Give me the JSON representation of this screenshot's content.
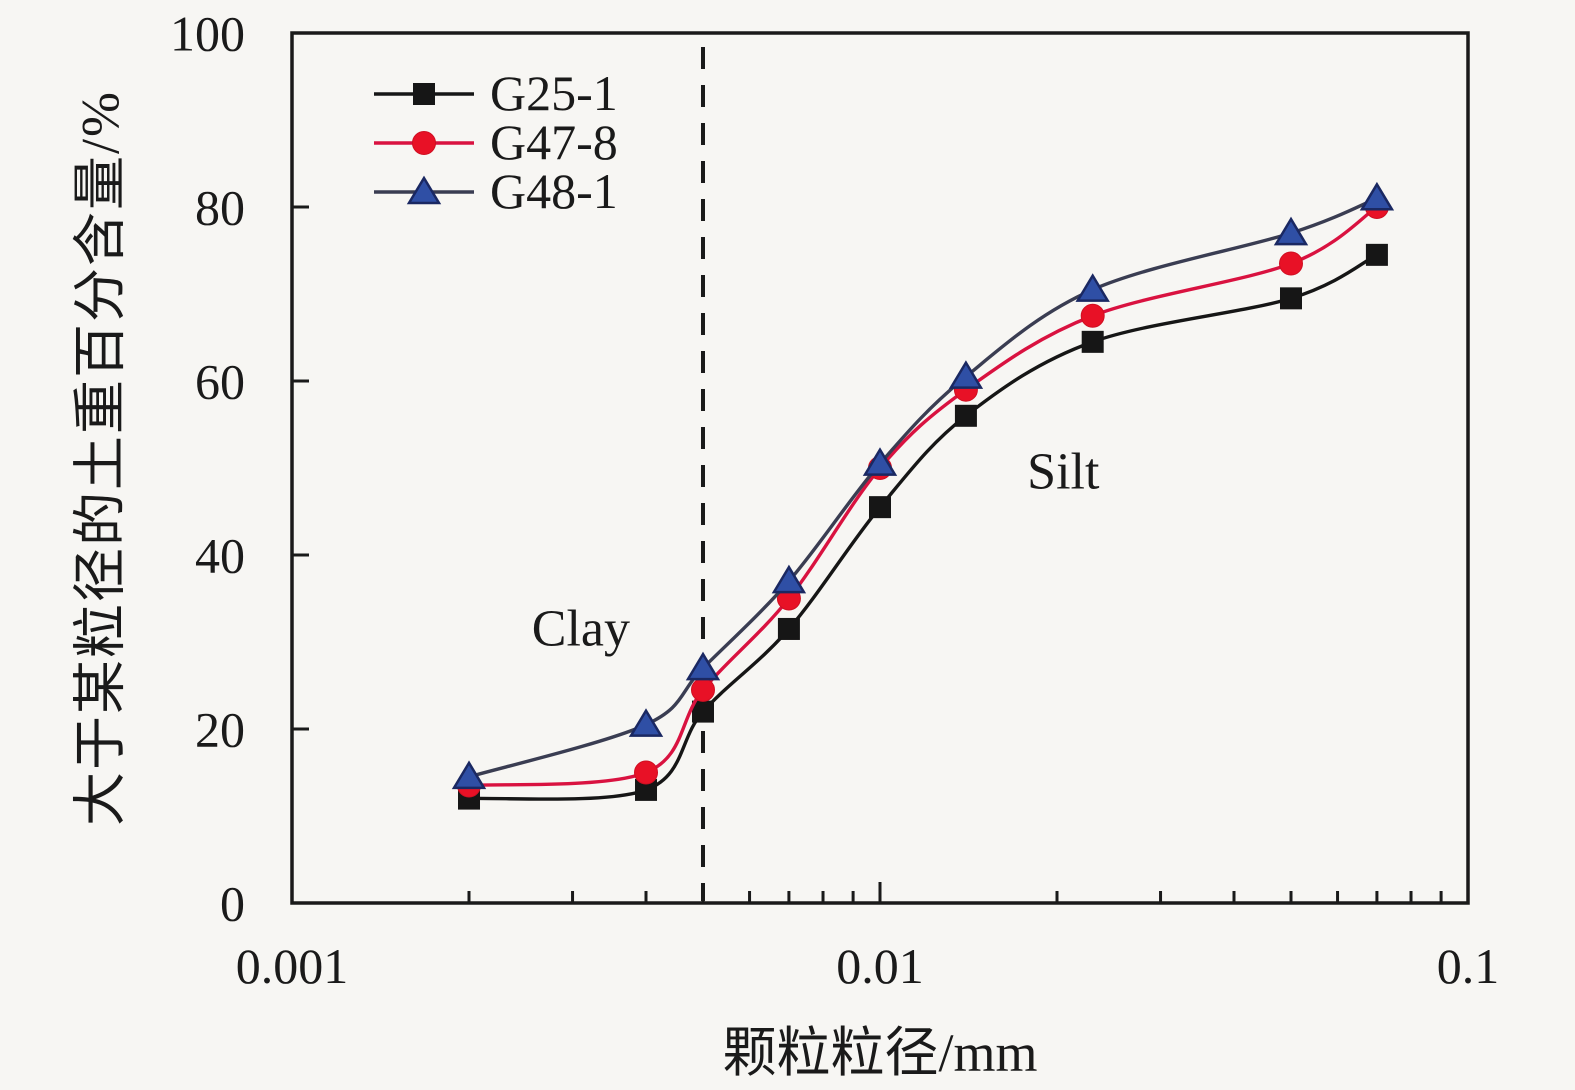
{
  "chart_data": {
    "type": "line",
    "title": "",
    "x_label": "颗粒粒径/mm",
    "y_label": "大于某粒径的土重百分含量/%",
    "x_scale": "log",
    "x_range": [
      0.001,
      0.1
    ],
    "y_range": [
      0,
      100
    ],
    "x_ticks": [
      {
        "value": 0.001,
        "label": "0.001"
      },
      {
        "value": 0.01,
        "label": "0.01"
      },
      {
        "value": 0.1,
        "label": "0.1"
      }
    ],
    "x_minor_ticks": [
      0.002,
      0.003,
      0.004,
      0.005,
      0.006,
      0.007,
      0.008,
      0.009,
      0.02,
      0.03,
      0.04,
      0.05,
      0.06,
      0.07,
      0.08,
      0.09
    ],
    "y_ticks": [
      {
        "value": 0,
        "label": "0"
      },
      {
        "value": 20,
        "label": "20"
      },
      {
        "value": 40,
        "label": "40"
      },
      {
        "value": 60,
        "label": "60"
      },
      {
        "value": 80,
        "label": "80"
      },
      {
        "value": 100,
        "label": "100"
      }
    ],
    "boundary_line": {
      "x": 0.005,
      "style": "dashed",
      "color": "#1a1a1a"
    },
    "region_labels": [
      {
        "text": "Clay",
        "x": 0.0031,
        "y": 31.5
      },
      {
        "text": "Silt",
        "x": 0.0205,
        "y": 49.5
      }
    ],
    "legend_position": "top-left",
    "series": [
      {
        "name": "G25-1",
        "marker": "square",
        "line_color": "#161616",
        "marker_color": "#161616",
        "marker_edge": "#161616",
        "points": [
          [
            0.002,
            12
          ],
          [
            0.004,
            13
          ],
          [
            0.005,
            22
          ],
          [
            0.007,
            31.5
          ],
          [
            0.01,
            45.5
          ],
          [
            0.014,
            56
          ],
          [
            0.023,
            64.5
          ],
          [
            0.05,
            69.5
          ],
          [
            0.07,
            74.5
          ]
        ]
      },
      {
        "name": "G47-8",
        "marker": "circle",
        "line_color": "#d91240",
        "marker_color": "#e81126",
        "marker_edge": "#d00f22",
        "points": [
          [
            0.002,
            13.5
          ],
          [
            0.004,
            15
          ],
          [
            0.005,
            24.5
          ],
          [
            0.007,
            35
          ],
          [
            0.01,
            50
          ],
          [
            0.014,
            59
          ],
          [
            0.023,
            67.5
          ],
          [
            0.05,
            73.5
          ],
          [
            0.07,
            80
          ]
        ]
      },
      {
        "name": "G48-1",
        "marker": "triangle",
        "line_color": "#3a3d52",
        "marker_color": "#2f4fa5",
        "marker_edge": "#1a2862",
        "points": [
          [
            0.002,
            14.5
          ],
          [
            0.004,
            20.5
          ],
          [
            0.005,
            27
          ],
          [
            0.007,
            37
          ],
          [
            0.01,
            50.5
          ],
          [
            0.014,
            60.5
          ],
          [
            0.023,
            70.5
          ],
          [
            0.05,
            77
          ],
          [
            0.07,
            81
          ]
        ]
      }
    ]
  },
  "colors": {
    "background": "#f7f6f3",
    "axis": "#1a1a1a",
    "tick_label": "#1a1a1a"
  }
}
